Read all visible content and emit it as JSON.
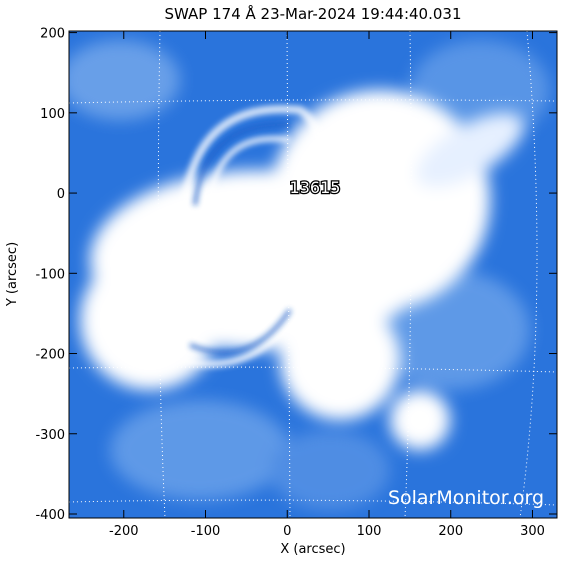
{
  "chart_data": {
    "type": "image",
    "title": "SWAP 174 Å 23-Mar-2024 19:44:40.031",
    "x_label": "X (arcsec)",
    "y_label": "Y (arcsec)",
    "annotation": "13615",
    "watermark": "SolarMonitor.org",
    "xlim": [
      -267,
      330
    ],
    "ylim": [
      -405,
      202
    ],
    "xticks": [
      -200,
      -100,
      0,
      100,
      200,
      300
    ],
    "yticks": [
      -400,
      -300,
      -200,
      -100,
      0,
      100,
      200
    ]
  }
}
